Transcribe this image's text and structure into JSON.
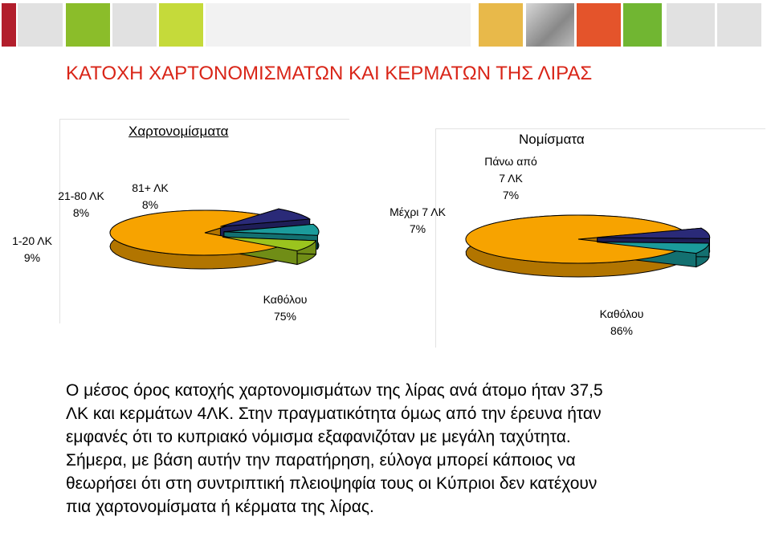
{
  "page": {
    "title": "ΚΑΤΟΧΗ ΧΑΡΤΟΝΟΜΙΣΜΑΤΩΝ ΚΑΙ ΚΕΡΜΑΤΩΝ ΤΗΣ ΛΙΡΑΣ",
    "body_lines": [
      "Ο μέσος όρος κατοχής χαρτονομισμάτων της λίρας ανά άτομο ήταν 37,5",
      "ΛΚ και κερμάτων 4ΛΚ. Στην πραγματικότητα όμως από την έρευνα ήταν",
      "εμφανές ότι το κυπριακό νόμισμα εξαφανιζόταν με μεγάλη ταχύτητα.",
      "Σήμερα, με βάση αυτήν την παρατήρηση, εύλογα μπορεί κάποιος να",
      "θεωρήσει ότι στη συντριπτική πλειοψηφία τους οι Κύπριοι δεν κατέχουν",
      "πια χαρτονομίσματα ή κέρματα της λίρας."
    ]
  },
  "colors": {
    "title": "#d92518",
    "orange": "#f7a300",
    "navy": "#2a2a78",
    "teal": "#1b9b9b",
    "olive": "#9bc41e"
  },
  "chart_data": [
    {
      "type": "pie",
      "title": "Χαρτονομίσματα",
      "slices": [
        {
          "label_lines": [
            "Καθόλου",
            "75%"
          ],
          "value": 75,
          "color": "#f7a300"
        },
        {
          "label_lines": [
            "1-20 ΛΚ",
            "9%"
          ],
          "value": 9,
          "color": "#2a2a78"
        },
        {
          "label_lines": [
            "21-80 ΛΚ",
            "8%"
          ],
          "value": 8,
          "color": "#1b9b9b"
        },
        {
          "label_lines": [
            "81+ ΛΚ",
            "8%"
          ],
          "value": 8,
          "color": "#9bc41e"
        }
      ]
    },
    {
      "type": "pie",
      "title": "Νομίσματα",
      "slices": [
        {
          "label_lines": [
            "Καθόλου",
            "86%"
          ],
          "value": 86,
          "color": "#f7a300"
        },
        {
          "label_lines": [
            "Μέχρι 7 ΛΚ",
            "7%"
          ],
          "value": 7,
          "color": "#2a2a78"
        },
        {
          "label_lines": [
            "Πάνω από",
            "7 ΛΚ",
            "7%"
          ],
          "value": 7,
          "color": "#1b9b9b"
        }
      ]
    }
  ]
}
